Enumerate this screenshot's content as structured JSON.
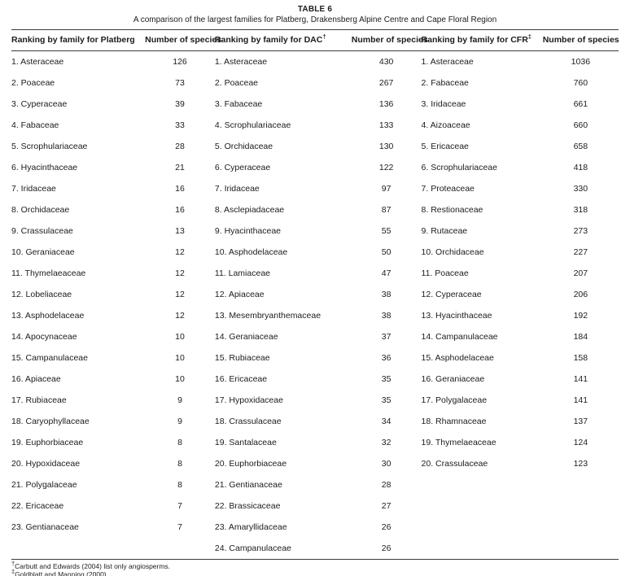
{
  "table": {
    "title": "TABLE 6",
    "subtitle": "A comparison of the largest families for Platberg, Drakensberg Alpine Centre and Cape Floral Region",
    "text_color": "#1c1c1c",
    "rule_color": "#3a3a3a",
    "groups": [
      {
        "id": "platberg",
        "ranking_header": "Ranking by family for Platberg",
        "marker": "",
        "count_header": "Number of species",
        "rows": [
          {
            "rank": "1",
            "family": "Asteraceae",
            "species": "126"
          },
          {
            "rank": "2",
            "family": "Poaceae",
            "species": "73"
          },
          {
            "rank": "3",
            "family": "Cyperaceae",
            "species": "39"
          },
          {
            "rank": "4",
            "family": "Fabaceae",
            "species": "33"
          },
          {
            "rank": "5",
            "family": "Scrophulariaceae",
            "species": "28"
          },
          {
            "rank": "6",
            "family": "Hyacinthaceae",
            "species": "21"
          },
          {
            "rank": "7",
            "family": "Iridaceae",
            "species": "16"
          },
          {
            "rank": "8",
            "family": "Orchidaceae",
            "species": "16"
          },
          {
            "rank": "9",
            "family": "Crassulaceae",
            "species": "13"
          },
          {
            "rank": "10",
            "family": "Geraniaceae",
            "species": "12"
          },
          {
            "rank": "11",
            "family": "Thymelaeaceae",
            "species": "12"
          },
          {
            "rank": "12",
            "family": "Lobeliaceae",
            "species": "12"
          },
          {
            "rank": "13",
            "family": "Asphodelaceae",
            "species": "12"
          },
          {
            "rank": "14",
            "family": "Apocynaceae",
            "species": "10"
          },
          {
            "rank": "15",
            "family": "Campanulaceae",
            "species": "10"
          },
          {
            "rank": "16",
            "family": "Apiaceae",
            "species": "10"
          },
          {
            "rank": "17",
            "family": "Rubiaceae",
            "species": "9"
          },
          {
            "rank": "18",
            "family": "Caryophyllaceae",
            "species": "9"
          },
          {
            "rank": "19",
            "family": "Euphorbiaceae",
            "species": "8"
          },
          {
            "rank": "20",
            "family": "Hypoxidaceae",
            "species": "8"
          },
          {
            "rank": "21",
            "family": "Polygalaceae",
            "species": "8"
          },
          {
            "rank": "22",
            "family": "Ericaceae",
            "species": "7"
          },
          {
            "rank": "23",
            "family": "Gentianaceae",
            "species": "7"
          }
        ]
      },
      {
        "id": "dac",
        "ranking_header": "Ranking by family for DAC",
        "marker": "†",
        "count_header": "Number of species",
        "rows": [
          {
            "rank": "1",
            "family": "Asteraceae",
            "species": "430"
          },
          {
            "rank": "2",
            "family": "Poaceae",
            "species": "267"
          },
          {
            "rank": "3",
            "family": "Fabaceae",
            "species": "136"
          },
          {
            "rank": "4",
            "family": "Scrophulariaceae",
            "species": "133"
          },
          {
            "rank": "5",
            "family": "Orchidaceae",
            "species": "130"
          },
          {
            "rank": "6",
            "family": "Cyperaceae",
            "species": "122"
          },
          {
            "rank": "7",
            "family": "Iridaceae",
            "species": "97"
          },
          {
            "rank": "8",
            "family": "Asclepiadaceae",
            "species": "87"
          },
          {
            "rank": "9",
            "family": "Hyacinthaceae",
            "species": "55"
          },
          {
            "rank": "10",
            "family": "Asphodelaceae",
            "species": "50"
          },
          {
            "rank": "11",
            "family": "Lamiaceae",
            "species": "47"
          },
          {
            "rank": "12",
            "family": "Apiaceae",
            "species": "38"
          },
          {
            "rank": "13",
            "family": "Mesembryanthemaceae",
            "species": "38"
          },
          {
            "rank": "14",
            "family": "Geraniaceae",
            "species": "37"
          },
          {
            "rank": "15",
            "family": "Rubiaceae",
            "species": "36"
          },
          {
            "rank": "16",
            "family": "Ericaceae",
            "species": "35"
          },
          {
            "rank": "17",
            "family": "Hypoxidaceae",
            "species": "35"
          },
          {
            "rank": "18",
            "family": "Crassulaceae",
            "species": "34"
          },
          {
            "rank": "19",
            "family": "Santalaceae",
            "species": "32"
          },
          {
            "rank": "20",
            "family": "Euphorbiaceae",
            "species": "30"
          },
          {
            "rank": "21",
            "family": "Gentianaceae",
            "species": "28"
          },
          {
            "rank": "22",
            "family": "Brassicaceae",
            "species": "27"
          },
          {
            "rank": "23",
            "family": "Amaryllidaceae",
            "species": "26"
          },
          {
            "rank": "24",
            "family": "Campanulaceae",
            "species": "26"
          }
        ]
      },
      {
        "id": "cfr",
        "ranking_header": "Ranking by family for CFR",
        "marker": "‡",
        "count_header": "Number of species",
        "rows": [
          {
            "rank": "1",
            "family": "Asteraceae",
            "species": "1036"
          },
          {
            "rank": "2",
            "family": "Fabaceae",
            "species": "760"
          },
          {
            "rank": "3",
            "family": "Iridaceae",
            "species": "661"
          },
          {
            "rank": "4",
            "family": "Aizoaceae",
            "species": "660"
          },
          {
            "rank": "5",
            "family": "Ericaceae",
            "species": "658"
          },
          {
            "rank": "6",
            "family": "Scrophulariaceae",
            "species": "418"
          },
          {
            "rank": "7",
            "family": "Proteaceae",
            "species": "330"
          },
          {
            "rank": "8",
            "family": "Restionaceae",
            "species": "318"
          },
          {
            "rank": "9",
            "family": "Rutaceae",
            "species": "273"
          },
          {
            "rank": "10",
            "family": "Orchidaceae",
            "species": "227"
          },
          {
            "rank": "11",
            "family": "Poaceae",
            "species": "207"
          },
          {
            "rank": "12",
            "family": "Cyperaceae",
            "species": "206"
          },
          {
            "rank": "13",
            "family": "Hyacinthaceae",
            "species": "192"
          },
          {
            "rank": "14",
            "family": "Campanulaceae",
            "species": "184"
          },
          {
            "rank": "15",
            "family": "Asphodelaceae",
            "species": "158"
          },
          {
            "rank": "16",
            "family": "Geraniaceae",
            "species": "141"
          },
          {
            "rank": "17",
            "family": "Polygalaceae",
            "species": "141"
          },
          {
            "rank": "18",
            "family": "Rhamnaceae",
            "species": "137"
          },
          {
            "rank": "19",
            "family": "Thymelaeaceae",
            "species": "124"
          },
          {
            "rank": "20",
            "family": "Crassulaceae",
            "species": "123"
          }
        ]
      }
    ],
    "footnotes": [
      {
        "marker": "†",
        "text": "Carbutt and Edwards (2004) list only angiosperms."
      },
      {
        "marker": "‡",
        "text": "Goldblatt and Manning (2000)."
      }
    ]
  }
}
